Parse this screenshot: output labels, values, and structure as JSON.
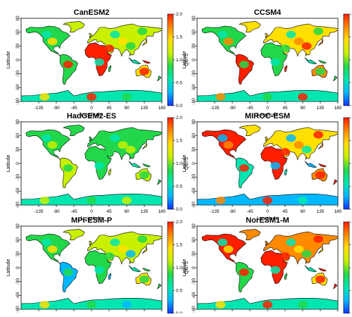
{
  "figure": {
    "colorbar": {
      "label": "QB75",
      "ticks": [
        "0.0",
        "0.5",
        "1.0",
        "1.5",
        "2.0"
      ],
      "stops": [
        "#1030ff",
        "#00b8ff",
        "#00e6b0",
        "#22d84a",
        "#c8f000",
        "#ffe000",
        "#ff8a00",
        "#ff1e00"
      ]
    },
    "x_axis": {
      "label": "Longitude",
      "ticks": [
        "-135",
        "-90",
        "-45",
        "0",
        "45",
        "90",
        "135",
        "180"
      ]
    },
    "y_axis": {
      "label": "Latitude",
      "ticks": [
        "-90",
        "-60",
        "-30",
        "0",
        "30",
        "60",
        "90"
      ]
    },
    "panels": [
      {
        "title": "CanESM2",
        "palette": [
          "#22d84a",
          "#22d84a",
          "#c8f000",
          "#00e6b0",
          "#ff1e00",
          "#ffe000"
        ]
      },
      {
        "title": "CCSM4",
        "palette": [
          "#22d84a",
          "#ff1e00",
          "#ffe000",
          "#00e6b0",
          "#22d84a",
          "#ff8a00"
        ]
      },
      {
        "title": "HadGEM2-ES",
        "palette": [
          "#22d84a",
          "#c8f000",
          "#22d84a",
          "#00e6b0",
          "#22d84a",
          "#c8f000"
        ]
      },
      {
        "title": "MIROC-ESM",
        "palette": [
          "#ff1e00",
          "#00e6b0",
          "#ffe000",
          "#00b8ff",
          "#ff1e00",
          "#ff8a00"
        ]
      },
      {
        "title": "MPI-ESM-P",
        "palette": [
          "#22d84a",
          "#00b8ff",
          "#c8f000",
          "#00e6b0",
          "#22d84a",
          "#ffe000"
        ]
      },
      {
        "title": "NorESM1-M",
        "palette": [
          "#ff1e00",
          "#22d84a",
          "#ff8a00",
          "#00e6b0",
          "#ff1e00",
          "#ffe000"
        ]
      }
    ]
  }
}
